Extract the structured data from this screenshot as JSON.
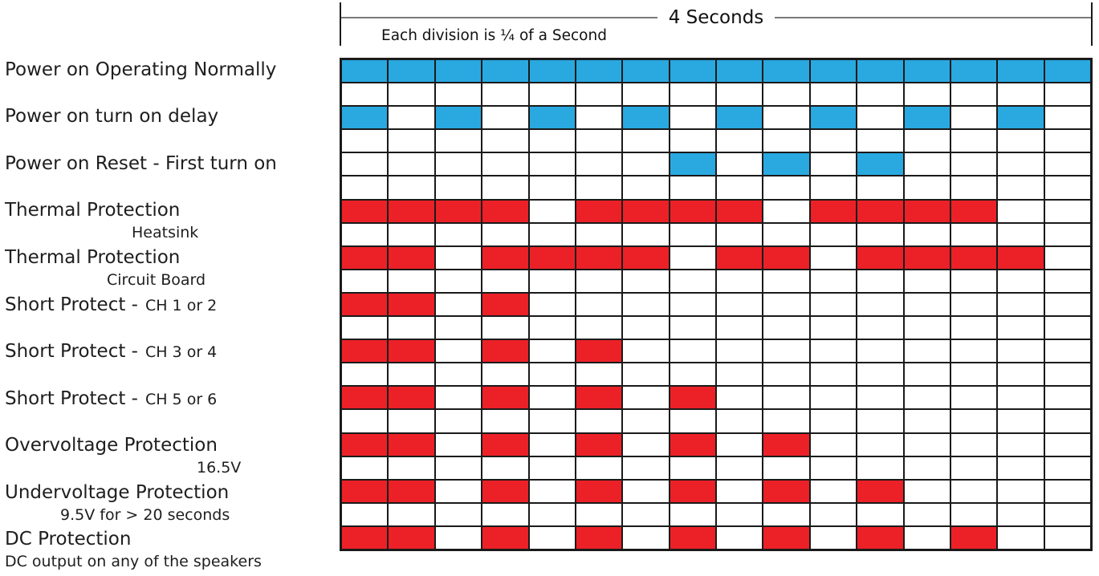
{
  "header": {
    "duration_label": "4 Seconds",
    "division_label": "Each division is ¼ of a Second"
  },
  "grid": {
    "columns": 16,
    "total_seconds": 4,
    "division_of_second": "1/4",
    "colors": {
      "on_blue": "#29A9E0",
      "on_red": "#EC2127",
      "off": "#FFFFFF",
      "line": "#1A1A1A"
    },
    "rows": [
      {
        "label": "Power on Operating Normally",
        "label_small": "",
        "sublabel": "",
        "color": "blue",
        "on_cells": [
          1,
          2,
          3,
          4,
          5,
          6,
          7,
          8,
          9,
          10,
          11,
          12,
          13,
          14,
          15,
          16
        ]
      },
      {
        "label": "Power on turn on delay",
        "label_small": "",
        "sublabel": "",
        "color": "blue",
        "on_cells": [
          1,
          3,
          5,
          7,
          9,
          11,
          13,
          15
        ]
      },
      {
        "label": "Power on Reset - First turn on",
        "label_small": "",
        "sublabel": "",
        "color": "blue",
        "on_cells": [
          8,
          10,
          12
        ]
      },
      {
        "label": "Thermal Protection",
        "label_small": "",
        "sublabel": "Heatsink",
        "color": "red",
        "on_cells": [
          1,
          2,
          3,
          4,
          6,
          7,
          8,
          9,
          11,
          12,
          13,
          14
        ]
      },
      {
        "label": "Thermal Protection",
        "label_small": "",
        "sublabel": "Circuit Board",
        "color": "red",
        "on_cells": [
          1,
          2,
          4,
          5,
          6,
          7,
          9,
          10,
          12,
          13,
          14,
          15
        ]
      },
      {
        "label": "Short Protect -",
        "label_small": "CH 1 or 2",
        "sublabel": "",
        "color": "red",
        "on_cells": [
          1,
          2,
          4
        ]
      },
      {
        "label": "Short Protect -",
        "label_small": "CH 3 or 4",
        "sublabel": "",
        "color": "red",
        "on_cells": [
          1,
          2,
          4,
          6
        ]
      },
      {
        "label": "Short Protect -",
        "label_small": "CH 5 or 6",
        "sublabel": "",
        "color": "red",
        "on_cells": [
          1,
          2,
          4,
          6,
          8
        ]
      },
      {
        "label": "Overvoltage Protection",
        "label_small": "",
        "sublabel": "16.5V",
        "color": "red",
        "on_cells": [
          1,
          2,
          4,
          6,
          8,
          10
        ]
      },
      {
        "label": "Undervoltage Protection",
        "label_small": "",
        "sublabel": "9.5V for > 20 seconds",
        "color": "red",
        "on_cells": [
          1,
          2,
          4,
          6,
          8,
          10,
          12
        ]
      },
      {
        "label": "DC Protection",
        "label_small": "",
        "sublabel": "DC output on any of the speakers",
        "color": "red",
        "on_cells": [
          1,
          2,
          4,
          6,
          8,
          10,
          12,
          14
        ]
      }
    ]
  }
}
